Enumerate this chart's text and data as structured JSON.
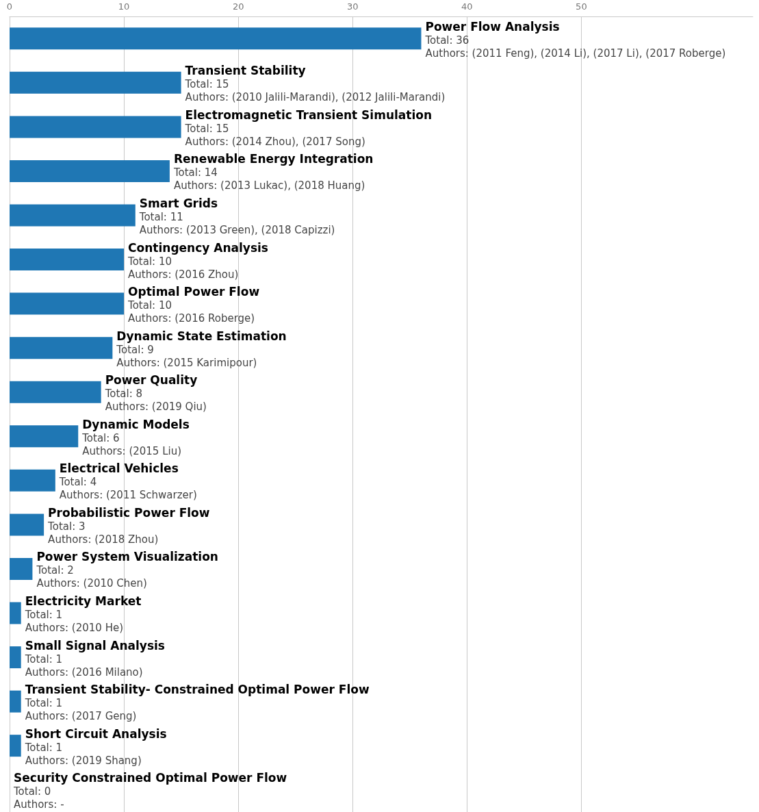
{
  "chart_data": {
    "type": "bar",
    "orientation": "horizontal",
    "categories": [
      "Power Flow Analysis",
      "Transient Stability",
      "Electromagnetic Transient Simulation",
      "Renewable Energy Integration",
      "Smart Grids",
      "Contingency Analysis",
      "Optimal Power Flow",
      "Dynamic State Estimation",
      "Power Quality",
      "Dynamic Models",
      "Electrical Vehicles",
      "Probabilistic Power Flow",
      "Power System Visualization",
      "Electricity Market",
      "Small Signal Analysis",
      "Transient Stability- Constrained Optimal Power Flow",
      "Short Circuit Analysis",
      "Security Constrained Optimal Power Flow"
    ],
    "values": [
      36,
      15,
      15,
      14,
      11,
      10,
      10,
      9,
      8,
      6,
      4,
      3,
      2,
      1,
      1,
      1,
      1,
      0
    ],
    "value_labels": [
      "Total: 36",
      "Total: 15",
      "Total: 15",
      "Total: 14",
      "Total: 11",
      "Total: 10",
      "Total: 10",
      "Total: 9",
      "Total: 8",
      "Total: 6",
      "Total: 4",
      "Total: 3",
      "Total: 2",
      "Total: 1",
      "Total: 1",
      "Total: 1",
      "Total: 1",
      "Total: 0"
    ],
    "annotations": [
      "Authors: (2011 Feng), (2014 Li), (2017 Li), (2017 Roberge)",
      "Authors: (2010 Jalili-Marandi), (2012 Jalili-Marandi)",
      "Authors: (2014 Zhou), (2017 Song)",
      "Authors: (2013 Lukac), (2018 Huang)",
      "Authors: (2013 Green), (2018 Capizzi)",
      "Authors: (2016 Zhou)",
      "Authors: (2016 Roberge)",
      "Authors: (2015 Karimipour)",
      "Authors: (2019 Qiu)",
      "Authors: (2015 Liu)",
      "Authors: (2011 Schwarzer)",
      "Authors: (2018 Zhou)",
      "Authors: (2010 Chen)",
      "Authors: (2010 He)",
      "Authors: (2016 Milano)",
      "Authors: (2017 Geng)",
      "Authors: (2019 Shang)",
      "Authors: -"
    ],
    "color": "#1f77b4",
    "xlim": [
      0,
      65
    ],
    "xticks": [
      0,
      10,
      20,
      30,
      40,
      50
    ],
    "grid": "x",
    "tick_labels": "x"
  }
}
